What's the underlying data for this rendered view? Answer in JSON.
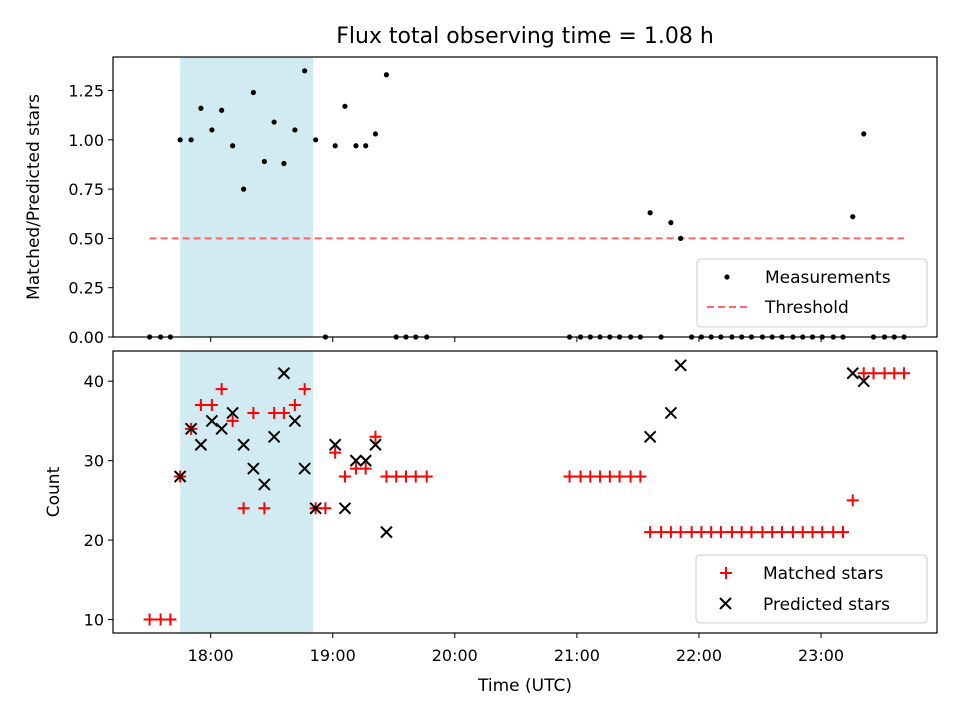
{
  "title": "Flux total observing time = 1.08 h",
  "colors": {
    "band": "#add8e6",
    "threshold": "#ff6666",
    "measurement": "#000000",
    "matched": "#ff0000",
    "predicted": "#000000"
  },
  "chart_data": [
    {
      "type": "scatter",
      "ylabel": "Matched/Predicted stars",
      "ylim": [
        0,
        1.42
      ],
      "y_ticks": [
        0,
        0.25,
        0.5,
        0.75,
        1.0,
        1.25
      ],
      "y_tick_labels": [
        "0.00",
        "0.25",
        "0.50",
        "0.75",
        "1.00",
        "1.25"
      ],
      "highlight_band": {
        "x_start": 17.75,
        "x_end": 18.84
      },
      "legend": {
        "position": "lower-right",
        "items": [
          "Measurements",
          "Threshold"
        ]
      },
      "series": [
        {
          "name": "Measurements",
          "marker": "dot",
          "x": [
            17.5,
            17.59,
            17.67,
            17.75,
            17.84,
            17.92,
            18.01,
            18.09,
            18.18,
            18.27,
            18.35,
            18.44,
            18.52,
            18.6,
            18.69,
            18.77,
            18.86,
            18.94,
            19.02,
            19.1,
            19.19,
            19.27,
            19.35,
            19.44,
            19.52,
            19.6,
            19.68,
            19.77,
            20.94,
            21.03,
            21.11,
            21.19,
            21.27,
            21.35,
            21.44,
            21.52,
            21.6,
            21.69,
            21.77,
            21.85,
            21.94,
            22.02,
            22.1,
            22.18,
            22.27,
            22.35,
            22.43,
            22.52,
            22.6,
            22.68,
            22.77,
            22.85,
            22.93,
            23.01,
            23.1,
            23.18,
            23.26,
            23.35,
            23.43,
            23.52,
            23.6,
            23.68
          ],
          "values": [
            0,
            0,
            0,
            1.0,
            1.0,
            1.16,
            1.05,
            1.15,
            0.97,
            0.75,
            1.24,
            0.89,
            1.09,
            0.88,
            1.05,
            1.35,
            1.0,
            0,
            0.97,
            1.17,
            0.97,
            0.97,
            1.03,
            1.33,
            0,
            0,
            0,
            0,
            0,
            0,
            0,
            0,
            0,
            0,
            0,
            0,
            0.63,
            0,
            0.58,
            0.5,
            0,
            0,
            0,
            0,
            0,
            0,
            0,
            0,
            0,
            0,
            0,
            0,
            0,
            0,
            0,
            0,
            0.61,
            1.03,
            0,
            0,
            0,
            0
          ]
        },
        {
          "name": "Threshold",
          "style": "dashed",
          "x": [
            17.5,
            23.68
          ],
          "values": [
            0.5,
            0.5
          ]
        }
      ]
    },
    {
      "type": "scatter",
      "xlabel": "Time (UTC)",
      "ylabel": "Count",
      "xlim": [
        17.2,
        23.95
      ],
      "ylim": [
        8.3,
        43.8
      ],
      "x_ticks": [
        18,
        19,
        20,
        21,
        22,
        23
      ],
      "x_tick_labels": [
        "18:00",
        "19:00",
        "20:00",
        "21:00",
        "22:00",
        "23:00"
      ],
      "y_ticks": [
        10,
        20,
        30,
        40
      ],
      "y_tick_labels": [
        "10",
        "20",
        "30",
        "40"
      ],
      "highlight_band": {
        "x_start": 17.75,
        "x_end": 18.84
      },
      "legend": {
        "position": "lower-right",
        "items": [
          "Matched stars",
          "Predicted stars"
        ]
      },
      "series": [
        {
          "name": "Matched stars",
          "marker": "plus",
          "x": [
            17.5,
            17.59,
            17.67,
            17.75,
            17.84,
            17.92,
            18.01,
            18.09,
            18.18,
            18.27,
            18.35,
            18.44,
            18.52,
            18.6,
            18.69,
            18.77,
            18.86,
            18.94,
            19.02,
            19.1,
            19.19,
            19.27,
            19.35,
            19.44,
            19.52,
            19.6,
            19.68,
            19.77,
            20.94,
            21.03,
            21.11,
            21.19,
            21.27,
            21.35,
            21.44,
            21.52,
            21.6,
            21.69,
            21.77,
            21.85,
            21.94,
            22.02,
            22.1,
            22.18,
            22.27,
            22.35,
            22.43,
            22.52,
            22.6,
            22.68,
            22.77,
            22.85,
            22.93,
            23.01,
            23.1,
            23.18,
            23.26,
            23.35,
            23.43,
            23.52,
            23.6,
            23.68
          ],
          "values": [
            10,
            10,
            10,
            28,
            34,
            37,
            37,
            39,
            35,
            24,
            36,
            24,
            36,
            36,
            37,
            39,
            24,
            24,
            31,
            28,
            29,
            29,
            33,
            28,
            28,
            28,
            28,
            28,
            28,
            28,
            28,
            28,
            28,
            28,
            28,
            28,
            21,
            21,
            21,
            21,
            21,
            21,
            21,
            21,
            21,
            21,
            21,
            21,
            21,
            21,
            21,
            21,
            21,
            21,
            21,
            21,
            25,
            41,
            41,
            41,
            41,
            41
          ]
        },
        {
          "name": "Predicted stars",
          "marker": "x",
          "x": [
            17.75,
            17.84,
            17.92,
            18.01,
            18.09,
            18.18,
            18.27,
            18.35,
            18.44,
            18.52,
            18.6,
            18.69,
            18.77,
            18.86,
            19.02,
            19.1,
            19.19,
            19.27,
            19.35,
            19.44,
            21.6,
            21.77,
            21.85,
            23.26,
            23.35
          ],
          "values": [
            28,
            34,
            32,
            35,
            34,
            36,
            32,
            29,
            27,
            33,
            41,
            35,
            29,
            24,
            32,
            24,
            30,
            30,
            32,
            21,
            33,
            36,
            42,
            41,
            40
          ]
        }
      ]
    }
  ]
}
